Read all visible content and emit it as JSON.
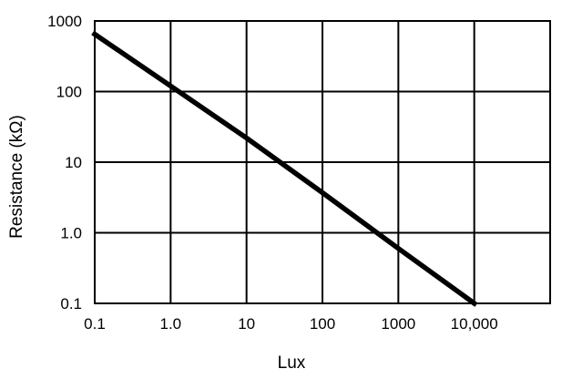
{
  "chart_data": {
    "type": "line",
    "title": "",
    "xlabel": "Lux",
    "ylabel": "Resistance (kΩ)",
    "xscale": "log",
    "yscale": "log",
    "xlim": [
      0.1,
      100000
    ],
    "ylim": [
      0.1,
      1000
    ],
    "grid": true,
    "legend": "none",
    "x_ticks": [
      {
        "value": 0.1,
        "label": "0.1"
      },
      {
        "value": 1,
        "label": "1.0"
      },
      {
        "value": 10,
        "label": "10"
      },
      {
        "value": 100,
        "label": "100"
      },
      {
        "value": 1000,
        "label": "1000"
      },
      {
        "value": 10000,
        "label": "10,000"
      }
    ],
    "y_ticks": [
      {
        "value": 0.1,
        "label": "0.1"
      },
      {
        "value": 1,
        "label": "1.0"
      },
      {
        "value": 10,
        "label": "10"
      },
      {
        "value": 100,
        "label": "100"
      },
      {
        "value": 1000,
        "label": "1000"
      }
    ],
    "series": [
      {
        "x": [
          0.1,
          1,
          10,
          100,
          1000,
          10000
        ],
        "y": [
          650,
          120,
          22,
          3.7,
          0.6,
          0.1
        ]
      }
    ],
    "colors": {
      "line": "#000000",
      "grid": "#000000",
      "background": "#ffffff"
    }
  }
}
